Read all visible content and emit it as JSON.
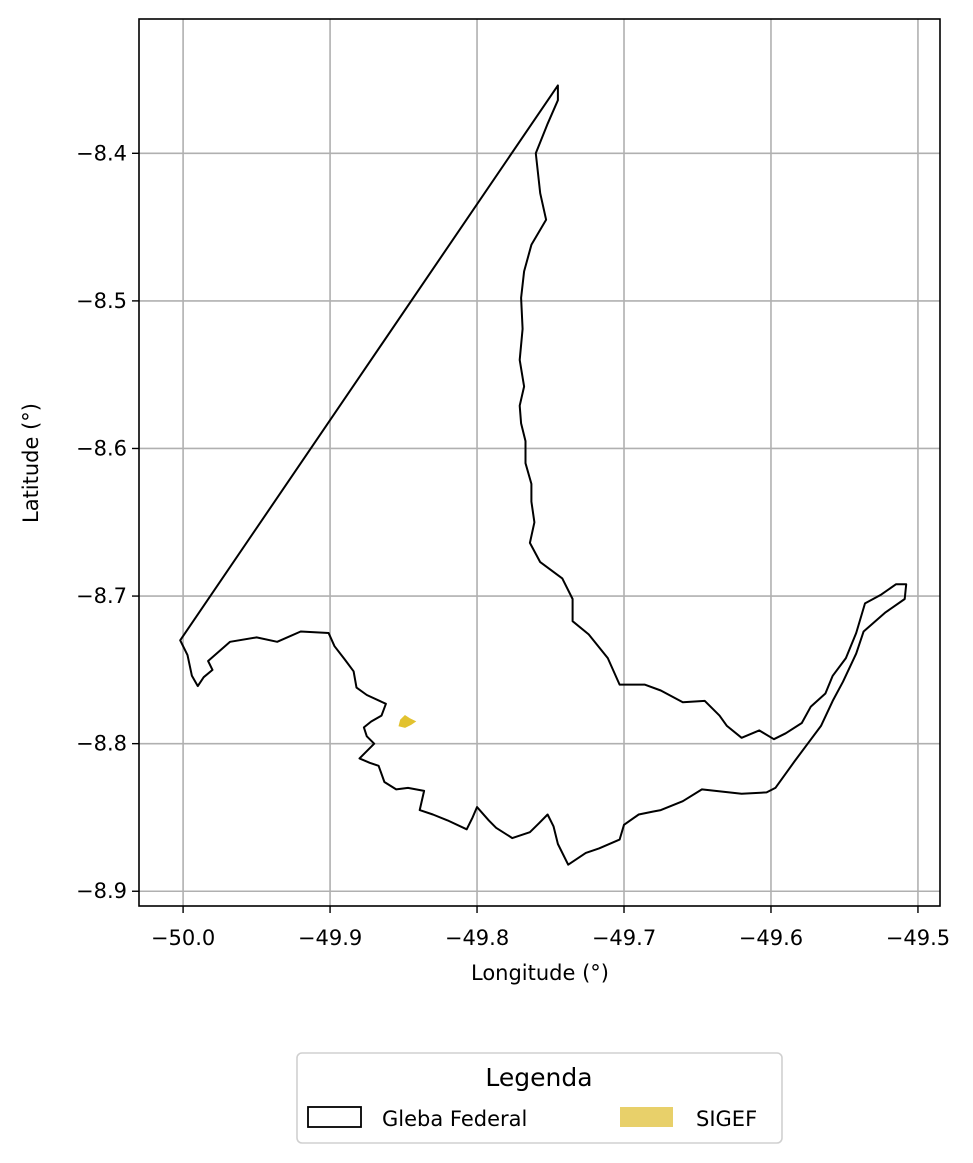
{
  "chart_data": {
    "type": "map",
    "xlabel": "Longitude (°)",
    "ylabel": "Latitude (°)",
    "xlim": [
      -50.03,
      -49.485
    ],
    "ylim": [
      -8.91,
      -8.309
    ],
    "x_ticks": [
      -50.0,
      -49.9,
      -49.8,
      -49.7,
      -49.6,
      -49.5
    ],
    "x_tick_labels": [
      "−50.0",
      "−49.9",
      "−49.8",
      "−49.7",
      "−49.6",
      "−49.5"
    ],
    "y_ticks": [
      -8.4,
      -8.5,
      -8.6,
      -8.7,
      -8.8,
      -8.9
    ],
    "y_tick_labels": [
      "−8.4",
      "−8.5",
      "−8.6",
      "−8.7",
      "−8.8",
      "−8.9"
    ],
    "grid": true,
    "legend": {
      "title": "Legenda",
      "placement": "bottom-center",
      "entries": [
        {
          "label": "Gleba Federal",
          "style": "outline",
          "color": "#000000"
        },
        {
          "label": "SIGEF",
          "style": "fill",
          "color": "#e8d06a"
        }
      ]
    },
    "series": [
      {
        "name": "Gleba Federal",
        "style": "outline",
        "color": "#000000",
        "lon_lat": [
          [
            -50.002,
            -8.73
          ],
          [
            -49.745,
            -8.354
          ],
          [
            -49.745,
            -8.364
          ],
          [
            -49.752,
            -8.38
          ],
          [
            -49.76,
            -8.4
          ],
          [
            -49.757,
            -8.427
          ],
          [
            -49.753,
            -8.445
          ],
          [
            -49.763,
            -8.462
          ],
          [
            -49.768,
            -8.48
          ],
          [
            -49.77,
            -8.498
          ],
          [
            -49.769,
            -8.519
          ],
          [
            -49.771,
            -8.54
          ],
          [
            -49.768,
            -8.558
          ],
          [
            -49.771,
            -8.571
          ],
          [
            -49.77,
            -8.583
          ],
          [
            -49.767,
            -8.595
          ],
          [
            -49.767,
            -8.61
          ],
          [
            -49.763,
            -8.624
          ],
          [
            -49.763,
            -8.636
          ],
          [
            -49.761,
            -8.65
          ],
          [
            -49.764,
            -8.664
          ],
          [
            -49.757,
            -8.677
          ],
          [
            -49.742,
            -8.688
          ],
          [
            -49.735,
            -8.702
          ],
          [
            -49.735,
            -8.717
          ],
          [
            -49.724,
            -8.726
          ],
          [
            -49.711,
            -8.742
          ],
          [
            -49.703,
            -8.76
          ],
          [
            -49.686,
            -8.76
          ],
          [
            -49.675,
            -8.764
          ],
          [
            -49.66,
            -8.772
          ],
          [
            -49.645,
            -8.771
          ],
          [
            -49.635,
            -8.781
          ],
          [
            -49.63,
            -8.788
          ],
          [
            -49.62,
            -8.796
          ],
          [
            -49.608,
            -8.791
          ],
          [
            -49.598,
            -8.797
          ],
          [
            -49.59,
            -8.793
          ],
          [
            -49.579,
            -8.786
          ],
          [
            -49.573,
            -8.775
          ],
          [
            -49.563,
            -8.766
          ],
          [
            -49.558,
            -8.754
          ],
          [
            -49.549,
            -8.742
          ],
          [
            -49.542,
            -8.725
          ],
          [
            -49.536,
            -8.705
          ],
          [
            -49.525,
            -8.699
          ],
          [
            -49.515,
            -8.692
          ],
          [
            -49.508,
            -8.692
          ],
          [
            -49.509,
            -8.702
          ],
          [
            -49.522,
            -8.711
          ],
          [
            -49.537,
            -8.724
          ],
          [
            -49.542,
            -8.739
          ],
          [
            -49.551,
            -8.758
          ],
          [
            -49.558,
            -8.771
          ],
          [
            -49.566,
            -8.788
          ],
          [
            -49.575,
            -8.8
          ],
          [
            -49.584,
            -8.812
          ],
          [
            -49.597,
            -8.83
          ],
          [
            -49.603,
            -8.833
          ],
          [
            -49.62,
            -8.834
          ],
          [
            -49.647,
            -8.831
          ],
          [
            -49.66,
            -8.839
          ],
          [
            -49.675,
            -8.845
          ],
          [
            -49.68,
            -8.846
          ],
          [
            -49.69,
            -8.848
          ],
          [
            -49.7,
            -8.855
          ],
          [
            -49.703,
            -8.865
          ],
          [
            -49.717,
            -8.871
          ],
          [
            -49.726,
            -8.874
          ],
          [
            -49.738,
            -8.882
          ],
          [
            -49.745,
            -8.868
          ],
          [
            -49.748,
            -8.856
          ],
          [
            -49.752,
            -8.848
          ],
          [
            -49.758,
            -8.854
          ],
          [
            -49.764,
            -8.86
          ],
          [
            -49.776,
            -8.864
          ],
          [
            -49.787,
            -8.857
          ],
          [
            -49.792,
            -8.852
          ],
          [
            -49.8,
            -8.843
          ],
          [
            -49.803,
            -8.85
          ],
          [
            -49.807,
            -8.858
          ],
          [
            -49.82,
            -8.852
          ],
          [
            -49.83,
            -8.848
          ],
          [
            -49.839,
            -8.845
          ],
          [
            -49.836,
            -8.832
          ],
          [
            -49.847,
            -8.83
          ],
          [
            -49.855,
            -8.831
          ],
          [
            -49.863,
            -8.826
          ],
          [
            -49.867,
            -8.815
          ],
          [
            -49.873,
            -8.813
          ],
          [
            -49.88,
            -8.81
          ],
          [
            -49.87,
            -8.8
          ],
          [
            -49.875,
            -8.795
          ],
          [
            -49.877,
            -8.789
          ],
          [
            -49.872,
            -8.785
          ],
          [
            -49.865,
            -8.781
          ],
          [
            -49.862,
            -8.773
          ],
          [
            -49.875,
            -8.767
          ],
          [
            -49.882,
            -8.762
          ],
          [
            -49.884,
            -8.751
          ],
          [
            -49.89,
            -8.743
          ],
          [
            -49.897,
            -8.734
          ],
          [
            -49.901,
            -8.725
          ],
          [
            -49.92,
            -8.724
          ],
          [
            -49.936,
            -8.731
          ],
          [
            -49.95,
            -8.728
          ],
          [
            -49.968,
            -8.731
          ],
          [
            -49.983,
            -8.744
          ],
          [
            -49.98,
            -8.75
          ],
          [
            -49.986,
            -8.755
          ],
          [
            -49.99,
            -8.761
          ],
          [
            -49.994,
            -8.754
          ],
          [
            -49.997,
            -8.74
          ],
          [
            -50.002,
            -8.73
          ]
        ]
      },
      {
        "name": "SIGEF",
        "style": "fill",
        "color": "#e2c22f",
        "lon_lat": [
          [
            -49.852,
            -8.784
          ],
          [
            -49.849,
            -8.781
          ],
          [
            -49.846,
            -8.783
          ],
          [
            -49.842,
            -8.785
          ],
          [
            -49.845,
            -8.787
          ],
          [
            -49.849,
            -8.789
          ],
          [
            -49.853,
            -8.788
          ],
          [
            -49.852,
            -8.784
          ]
        ]
      }
    ]
  }
}
